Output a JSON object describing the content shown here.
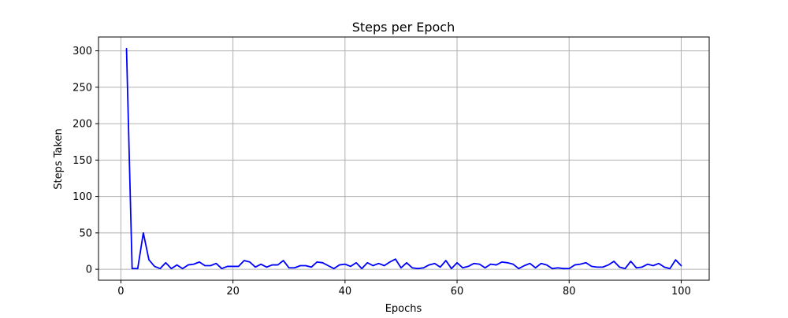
{
  "chart_data": {
    "type": "line",
    "title": "Steps per Epoch",
    "xlabel": "Epochs",
    "ylabel": "Steps Taken",
    "xlim": [
      -4,
      105
    ],
    "ylim": [
      -15,
      319
    ],
    "xticks": [
      0,
      20,
      40,
      60,
      80,
      100
    ],
    "yticks": [
      0,
      50,
      100,
      150,
      200,
      250,
      300
    ],
    "grid": true,
    "line_color": "#0000ff",
    "series": [
      {
        "x": [
          1,
          2,
          3,
          4,
          5,
          6,
          7,
          8,
          9,
          10,
          11,
          12,
          13,
          14,
          15,
          16,
          17,
          18,
          19,
          20,
          21,
          22,
          23,
          24,
          25,
          26,
          27,
          28,
          29,
          30,
          31,
          32,
          33,
          34,
          35,
          36,
          37,
          38,
          39,
          40,
          41,
          42,
          43,
          44,
          45,
          46,
          47,
          48,
          49,
          50,
          51,
          52,
          53,
          54,
          55,
          56,
          57,
          58,
          59,
          60,
          61,
          62,
          63,
          64,
          65,
          66,
          67,
          68,
          69,
          70,
          71,
          72,
          73,
          74,
          75,
          76,
          77,
          78,
          79,
          80,
          81,
          82,
          83,
          84,
          85,
          86,
          87,
          88,
          89,
          90,
          91,
          92,
          93,
          94,
          95,
          96,
          97,
          98,
          99,
          100
        ],
        "y": [
          303,
          1,
          1,
          50,
          13,
          4,
          1,
          9,
          1,
          6,
          1,
          6,
          7,
          10,
          5,
          5,
          8,
          1,
          4,
          4,
          4,
          12,
          10,
          3,
          7,
          3,
          6,
          6,
          12,
          2,
          2,
          5,
          5,
          3,
          10,
          9,
          5,
          1,
          6,
          7,
          4,
          9,
          1,
          9,
          5,
          8,
          5,
          10,
          14,
          2,
          9,
          2,
          1,
          2,
          6,
          8,
          3,
          12,
          1,
          9,
          2,
          4,
          8,
          7,
          2,
          7,
          6,
          10,
          9,
          7,
          1,
          5,
          8,
          2,
          8,
          6,
          1,
          2,
          1,
          1,
          6,
          7,
          9,
          4,
          3,
          3,
          6,
          11,
          3,
          1,
          11,
          2,
          3,
          7,
          5,
          8,
          3,
          1,
          13,
          5
        ]
      }
    ]
  }
}
